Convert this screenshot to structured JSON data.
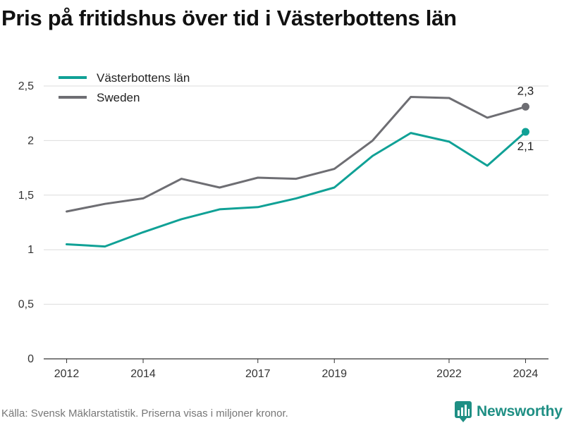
{
  "title": "Pris på fritidshus över tid i Västerbottens län",
  "footer": "Källa: Svensk Mäklarstatistik. Priserna visas i miljoner kronor.",
  "brand": {
    "name": "Newsworthy",
    "icon": "newsworthy-logo-icon",
    "color": "#1f8f84"
  },
  "chart_data": {
    "type": "line",
    "x": [
      2012,
      2013,
      2014,
      2015,
      2016,
      2017,
      2018,
      2019,
      2020,
      2021,
      2022,
      2023,
      2024
    ],
    "x_ticks": [
      2012,
      2014,
      2017,
      2019,
      2022,
      2024
    ],
    "x_tick_labels": [
      "2012",
      "2014",
      "2017",
      "2019",
      "2022",
      "2024"
    ],
    "xlim": [
      2011.4,
      2024.6
    ],
    "ylim": [
      0,
      2.5
    ],
    "y_ticks": [
      0,
      0.5,
      1,
      1.5,
      2,
      2.5
    ],
    "y_tick_labels": [
      "0",
      "0,5",
      "1",
      "1,5",
      "2",
      "2,5"
    ],
    "grid": true,
    "legend": "top-left",
    "series": [
      {
        "name": "Västerbottens län",
        "color": "#10a196",
        "values": [
          1.05,
          1.03,
          1.16,
          1.28,
          1.37,
          1.39,
          1.47,
          1.57,
          1.86,
          2.07,
          1.99,
          1.77,
          2.08
        ],
        "end_label": "2,1"
      },
      {
        "name": "Sweden",
        "color": "#6e6e73",
        "values": [
          1.35,
          1.42,
          1.47,
          1.65,
          1.57,
          1.66,
          1.65,
          1.74,
          2.0,
          2.4,
          2.39,
          2.21,
          2.31
        ],
        "end_label": "2,3"
      }
    ]
  }
}
